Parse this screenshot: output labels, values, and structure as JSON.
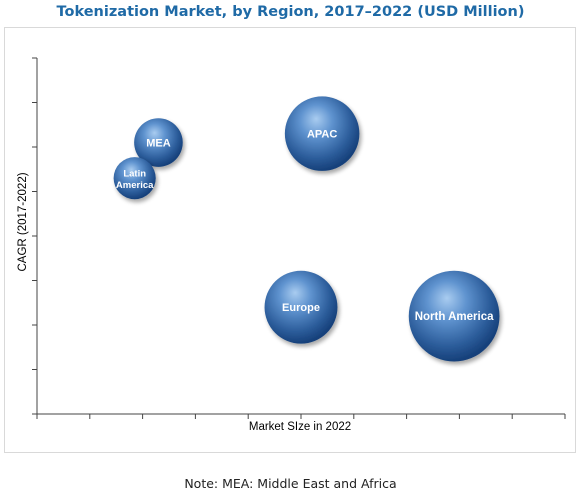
{
  "chart_data": {
    "type": "bubble",
    "title": "Tokenization Market, by Region, 2017–2022 (USD Million)",
    "xlabel": "Market SIze in 2022",
    "ylabel": "CAGR (2017-2022)",
    "grid": false,
    "legend": "none",
    "points": [
      {
        "label": "MEA",
        "x": 2.3,
        "y": 6.1,
        "size": 3
      },
      {
        "label": "Latin America",
        "x": 1.85,
        "y": 5.3,
        "size": 2.6
      },
      {
        "label": "APAC",
        "x": 5.4,
        "y": 6.3,
        "size": 4.6
      },
      {
        "label": "Europe",
        "x": 5.0,
        "y": 2.4,
        "size": 4.5
      },
      {
        "label": "North America",
        "x": 7.9,
        "y": 2.2,
        "size": 5.6
      }
    ],
    "xlim": [
      0,
      10
    ],
    "ylim": [
      0,
      8
    ],
    "note": "Note: MEA: Middle East and Africa",
    "colors": {
      "bubble_light": "#9cc3ea",
      "bubble_mid": "#4a7fbf",
      "bubble_dark": "#16407a",
      "title": "#1f6aa6"
    }
  }
}
